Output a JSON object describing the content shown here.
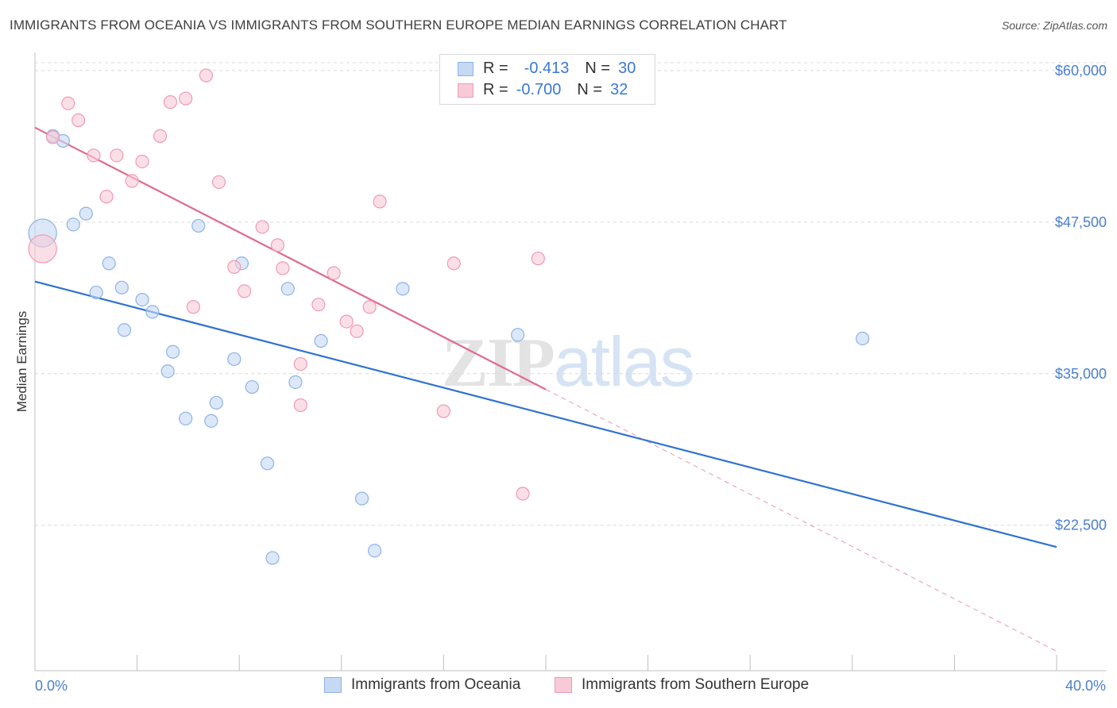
{
  "title": "IMMIGRANTS FROM OCEANIA VS IMMIGRANTS FROM SOUTHERN EUROPE MEDIAN EARNINGS CORRELATION CHART",
  "source": "Source: ZipAtlas.com",
  "watermark": {
    "zip": "ZIP",
    "atlas": "atlas"
  },
  "legend": {
    "rows": [
      {
        "r_label": "R =",
        "r_value": "-0.413",
        "n_label": "N =",
        "n_value": "30"
      },
      {
        "r_label": "R =",
        "r_value": "-0.700",
        "n_label": "N =",
        "n_value": "32"
      }
    ]
  },
  "chart_data": {
    "type": "scatter",
    "title": "IMMIGRANTS FROM OCEANIA VS IMMIGRANTS FROM SOUTHERN EUROPE MEDIAN EARNINGS CORRELATION CHART",
    "xlabel": "",
    "ylabel": "Median Earnings",
    "xlim": [
      0,
      40
    ],
    "ylim": [
      10500,
      61500
    ],
    "x_tick_labels": [
      "0.0%",
      "40.0%"
    ],
    "y_ticks": [
      22500,
      35000,
      47500,
      60000
    ],
    "y_tick_labels": [
      "$22,500",
      "$35,000",
      "$47,500",
      "$60,000"
    ],
    "grid": true,
    "legend_position": "bottom",
    "colors": {
      "oceania_fill": "#c5d9f3",
      "oceania_stroke": "#8db3e6",
      "oceania_line": "#2f72d0",
      "southern_fill": "#f8cad7",
      "southern_stroke": "#f09ab3",
      "southern_line": "#e06a8e"
    },
    "series": [
      {
        "name": "Immigrants from Oceania",
        "points": [
          [
            0.3,
            46600
          ],
          [
            0.7,
            54600
          ],
          [
            1.1,
            54200
          ],
          [
            1.5,
            47300
          ],
          [
            2.0,
            48200
          ],
          [
            2.4,
            41700
          ],
          [
            2.9,
            44100
          ],
          [
            3.5,
            38600
          ],
          [
            3.4,
            42100
          ],
          [
            4.2,
            41100
          ],
          [
            4.6,
            40100
          ],
          [
            5.2,
            35200
          ],
          [
            5.4,
            36800
          ],
          [
            5.9,
            31300
          ],
          [
            6.4,
            47200
          ],
          [
            6.9,
            31100
          ],
          [
            7.1,
            32600
          ],
          [
            7.8,
            36200
          ],
          [
            8.1,
            44100
          ],
          [
            8.5,
            33900
          ],
          [
            9.1,
            27600
          ],
          [
            9.3,
            19800
          ],
          [
            9.9,
            42000
          ],
          [
            10.2,
            34300
          ],
          [
            11.2,
            37700
          ],
          [
            12.8,
            24700
          ],
          [
            13.3,
            20400
          ],
          [
            14.4,
            42000
          ],
          [
            18.9,
            38200
          ],
          [
            32.4,
            37900
          ]
        ],
        "point_sizes": [
          2.2,
          1,
          1,
          1,
          1,
          1,
          1,
          1,
          1,
          1,
          1,
          1,
          1,
          1,
          1,
          1,
          1,
          1,
          1,
          1,
          1,
          1,
          1,
          1,
          1,
          1,
          1,
          1,
          1,
          1
        ],
        "trend": {
          "x": [
            0,
            40
          ],
          "y": [
            42600,
            20700
          ]
        }
      },
      {
        "name": "Immigrants from Southern Europe",
        "points": [
          [
            0.3,
            45300
          ],
          [
            0.7,
            54500
          ],
          [
            1.3,
            57300
          ],
          [
            1.7,
            55900
          ],
          [
            2.3,
            53000
          ],
          [
            2.8,
            49600
          ],
          [
            3.2,
            53000
          ],
          [
            3.8,
            50900
          ],
          [
            4.2,
            52500
          ],
          [
            4.9,
            54600
          ],
          [
            5.3,
            57400
          ],
          [
            5.9,
            57700
          ],
          [
            6.2,
            40500
          ],
          [
            6.7,
            59600
          ],
          [
            7.2,
            50800
          ],
          [
            7.8,
            43800
          ],
          [
            8.2,
            41800
          ],
          [
            8.9,
            47100
          ],
          [
            9.5,
            45600
          ],
          [
            9.7,
            43700
          ],
          [
            10.4,
            35800
          ],
          [
            10.4,
            32400
          ],
          [
            11.1,
            40700
          ],
          [
            11.7,
            43300
          ],
          [
            12.2,
            39300
          ],
          [
            12.6,
            38500
          ],
          [
            13.1,
            40500
          ],
          [
            13.5,
            49200
          ],
          [
            16.0,
            31900
          ],
          [
            16.4,
            44100
          ],
          [
            19.1,
            25100
          ],
          [
            19.7,
            44500
          ]
        ],
        "point_sizes": [
          2.2,
          1,
          1,
          1,
          1,
          1,
          1,
          1,
          1,
          1,
          1,
          1,
          1,
          1,
          1,
          1,
          1,
          1,
          1,
          1,
          1,
          1,
          1,
          1,
          1,
          1,
          1,
          1,
          1,
          1,
          1,
          1
        ],
        "trend": {
          "x": [
            0,
            20
          ],
          "y": [
            55300,
            33700
          ],
          "dashed_extension": {
            "x": [
              20,
              40
            ],
            "y": [
              33700,
              12100
            ]
          }
        }
      }
    ]
  }
}
